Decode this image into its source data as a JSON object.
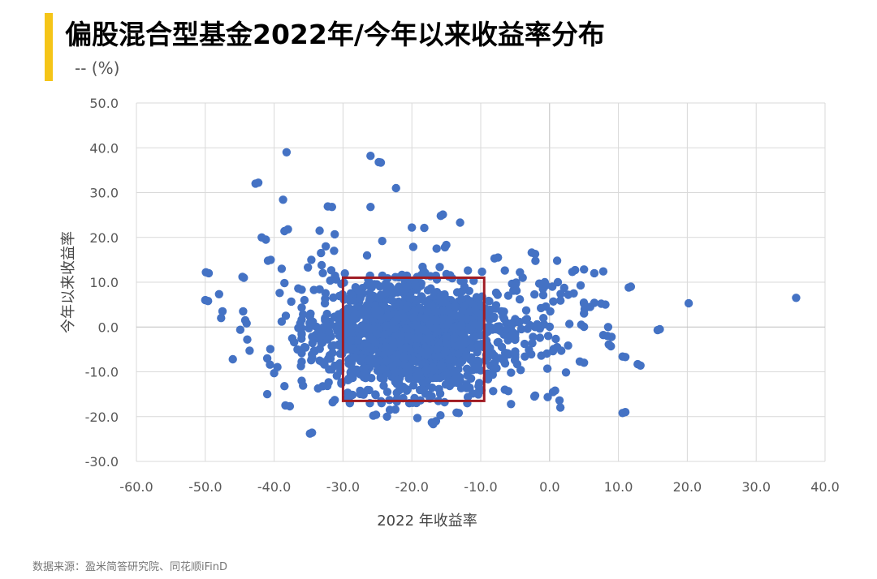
{
  "header": {
    "title": "偏股混合型基金2022年/今年以来收益率分布",
    "unit": "-- (%)"
  },
  "source": "数据来源：盈米简答研究院、同花顺iFinD",
  "chart_data": {
    "type": "scatter",
    "xlabel": "2022 年收益率",
    "ylabel": "今年以来收益率",
    "xlim": [
      -60,
      40
    ],
    "ylim": [
      -30,
      50
    ],
    "xticks": [
      -60,
      -50,
      -40,
      -30,
      -20,
      -10,
      0,
      10,
      20,
      30,
      40
    ],
    "yticks": [
      -30,
      -20,
      -10,
      0,
      10,
      20,
      30,
      40,
      50
    ],
    "tick_format": "one-decimal",
    "grid": "vertical-and-horizontal",
    "marker_color": "#4472C4",
    "highlight_box": {
      "x": [
        -30,
        -9.5
      ],
      "y": [
        -16.5,
        11
      ],
      "color": "#A01C24"
    },
    "outliers": [
      [
        -38.2,
        39.0
      ],
      [
        -26,
        38.2
      ],
      [
        -24.8,
        36.8
      ],
      [
        -24.5,
        36.7
      ],
      [
        -22.3,
        31.0
      ],
      [
        -42.3,
        32.2
      ],
      [
        -42.7,
        32.0
      ],
      [
        -38.7,
        28.4
      ],
      [
        -32.2,
        26.9
      ],
      [
        -31.6,
        26.8
      ],
      [
        -26,
        26.8
      ],
      [
        -15.5,
        25.1
      ],
      [
        -15.8,
        24.8
      ],
      [
        -13,
        23.3
      ],
      [
        -20,
        22.2
      ],
      [
        -18.2,
        22.1
      ],
      [
        -38,
        21.8
      ],
      [
        -38.5,
        21.4
      ],
      [
        -33.4,
        21.5
      ],
      [
        -31.2,
        20.7
      ],
      [
        -41.8,
        20.0
      ],
      [
        -41.2,
        19.5
      ],
      [
        -24.3,
        19.2
      ],
      [
        -15,
        18.3
      ],
      [
        -15.2,
        17.8
      ],
      [
        -19.8,
        17.9
      ],
      [
        -16.4,
        17.5
      ],
      [
        -49.9,
        12.2
      ],
      [
        -49.5,
        12.0
      ],
      [
        -44.6,
        11.2
      ],
      [
        -44.4,
        11.0
      ],
      [
        -40.9,
        14.8
      ],
      [
        -40.5,
        15.0
      ],
      [
        -38.9,
        13.0
      ],
      [
        -50,
        6.0
      ],
      [
        -49.6,
        5.8
      ],
      [
        -47.5,
        3.5
      ],
      [
        -47.7,
        2.0
      ],
      [
        -44.5,
        3.5
      ],
      [
        -44.2,
        1.5
      ],
      [
        -44,
        0.8
      ],
      [
        -43.9,
        -2.8
      ],
      [
        -46,
        -7.2
      ],
      [
        -41,
        -7.0
      ],
      [
        -40.6,
        -8.4
      ],
      [
        -40,
        -10.3
      ],
      [
        -41,
        -15.0
      ],
      [
        -38.5,
        -13.2
      ],
      [
        -34.8,
        -23.8
      ],
      [
        -34.5,
        -23.6
      ],
      [
        -25.2,
        -19.6
      ],
      [
        -25.6,
        -19.8
      ],
      [
        -19.2,
        -20.3
      ],
      [
        -17.1,
        -21.3
      ],
      [
        -16.9,
        -21.7
      ],
      [
        -16.5,
        -21.0
      ],
      [
        -13.5,
        -19.1
      ],
      [
        -13.2,
        -19.2
      ],
      [
        -23.2,
        -18.5
      ],
      [
        -22.4,
        -18.4
      ],
      [
        -29,
        -16.8
      ],
      [
        -31.5,
        -16.8
      ],
      [
        -31.2,
        -16.3
      ],
      [
        -2.2,
        -15.5
      ],
      [
        -2.1,
        -15.3
      ],
      [
        0.5,
        -14.5
      ],
      [
        0.8,
        -14.2
      ],
      [
        -6,
        -14.3
      ],
      [
        -6.5,
        -14.0
      ],
      [
        0.5,
        -5.4
      ],
      [
        1.1,
        -4.5
      ],
      [
        0.6,
        -4.9
      ],
      [
        1.7,
        -5.3
      ],
      [
        1.1,
        14.8
      ],
      [
        -2.1,
        16.3
      ],
      [
        -2.6,
        16.6
      ],
      [
        -8,
        15.3
      ],
      [
        -7.5,
        15.5
      ],
      [
        -6.5,
        12.6
      ],
      [
        -4.3,
        12.2
      ],
      [
        3.7,
        12.7
      ],
      [
        3.3,
        12.3
      ],
      [
        6.5,
        12.0
      ],
      [
        7.8,
        12.4
      ],
      [
        11.8,
        9.0
      ],
      [
        11.5,
        8.8
      ],
      [
        4.5,
        9.3
      ],
      [
        3.5,
        7.5
      ],
      [
        2.7,
        7.2
      ],
      [
        5.1,
        4.0
      ],
      [
        5.9,
        4.5
      ],
      [
        6.5,
        5.4
      ],
      [
        7.5,
        5.2
      ],
      [
        8.1,
        5.0
      ],
      [
        4.6,
        0.5
      ],
      [
        8.5,
        0.0
      ],
      [
        8.4,
        -2.0
      ],
      [
        9,
        -2.2
      ],
      [
        8.6,
        -3.9
      ],
      [
        8.9,
        -4.3
      ],
      [
        7.8,
        -1.8
      ],
      [
        10.6,
        -6.6
      ],
      [
        11,
        -6.7
      ],
      [
        13.2,
        -8.6
      ],
      [
        12.8,
        -8.3
      ],
      [
        10.6,
        -19.2
      ],
      [
        11,
        -19.0
      ],
      [
        15.7,
        -0.7
      ],
      [
        16,
        -0.5
      ],
      [
        20.2,
        5.3
      ],
      [
        35.8,
        6.5
      ],
      [
        -2.1,
        0.0
      ],
      [
        -1.8,
        0.6
      ],
      [
        -2.4,
        -2.2
      ],
      [
        -1.4,
        -2.4
      ],
      [
        -3,
        -5.1
      ],
      [
        -3.6,
        -6.6
      ],
      [
        -1.2,
        -6.4
      ],
      [
        -0.2,
        -2.0
      ],
      [
        -0.9,
        2.0
      ],
      [
        -0.7,
        10.0
      ],
      [
        -1.5,
        9.7
      ],
      [
        1.2,
        10.0
      ],
      [
        0.4,
        9.0
      ],
      [
        1.6,
        7.4
      ],
      [
        -3.3,
        1.8
      ],
      [
        -4.4,
        1.0
      ],
      [
        -3.2,
        -0.4
      ],
      [
        -4.8,
        8.1
      ],
      [
        -3.9,
        11.0
      ],
      [
        -6,
        7.0
      ],
      [
        -3.4,
        3.7
      ],
      [
        -4.7,
        -8.3
      ],
      [
        -4.2,
        -9.6
      ],
      [
        -5.6,
        -10.2
      ],
      [
        -7.7,
        -9.2
      ],
      [
        -8.2,
        -14.3
      ],
      [
        -11.4,
        -11.5
      ],
      [
        -36,
        -12.0
      ],
      [
        -35.8,
        -13.1
      ],
      [
        -33.4,
        -7.5
      ],
      [
        -34.2,
        -5.3
      ],
      [
        -36.6,
        -5.0
      ],
      [
        -37.1,
        -3.4
      ],
      [
        -36.2,
        0.8
      ],
      [
        -38.3,
        2.5
      ],
      [
        -38.9,
        1.2
      ],
      [
        -39.2,
        7.6
      ],
      [
        -38.5,
        9.8
      ],
      [
        -36.5,
        8.6
      ],
      [
        -35.6,
        6.0
      ],
      [
        -34.6,
        15.0
      ],
      [
        -33.2,
        16.5
      ],
      [
        -33.1,
        13.8
      ],
      [
        -35.1,
        13.3
      ],
      [
        -32.5,
        18.0
      ],
      [
        -31.3,
        17.0
      ],
      [
        -31,
        10.6
      ],
      [
        -33.4,
        8.4
      ],
      [
        -32.6,
        6.3
      ]
    ]
  }
}
